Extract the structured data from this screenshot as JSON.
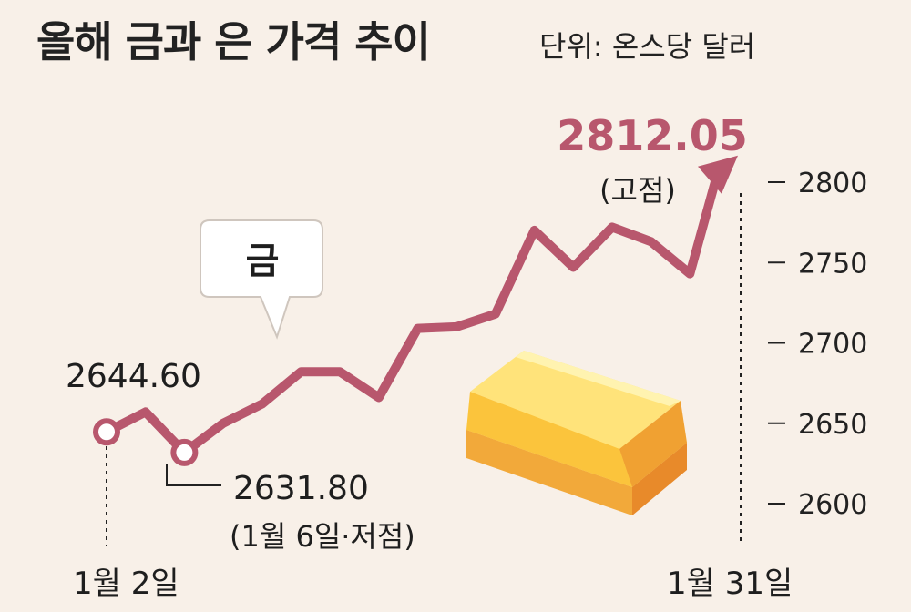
{
  "title": "올해 금과 은 가격 추이",
  "unit": "단위: 온스당 달러",
  "series_tag": "금",
  "colors": {
    "line": "#b8576d",
    "background": "#f8f0e8",
    "highlight": "#b8576d",
    "text": "#1e1e1e"
  },
  "annotations": {
    "start_value": "2644.60",
    "low_value": "2631.80",
    "low_note": "(1월 6일·저점)",
    "high_value": "2812.05",
    "high_note": "(고점)",
    "start_date": "1월 2일",
    "end_date": "1월 31일"
  },
  "chart_data": {
    "type": "line",
    "title": "올해 금과 은 가격 추이",
    "unit": "달러/온스",
    "ylim": [
      2600,
      2800
    ],
    "yticks": [
      "2800",
      "2750",
      "2700",
      "2650",
      "2600"
    ],
    "xlabels": [
      "1월 2일",
      "1월 31일"
    ],
    "series": [
      {
        "name": "금",
        "values": [
          2644.6,
          2657,
          2631.8,
          2650,
          2662,
          2682,
          2682,
          2666,
          2709,
          2710,
          2718,
          2770,
          2747,
          2772,
          2763,
          2743,
          2812.05
        ]
      }
    ],
    "annotations": [
      {
        "label": "2644.60"
      },
      {
        "label": "2631.80 (1월 6일·저점)"
      },
      {
        "label": "2812.05 (고점)"
      }
    ],
    "grid": false,
    "legend": "none"
  }
}
